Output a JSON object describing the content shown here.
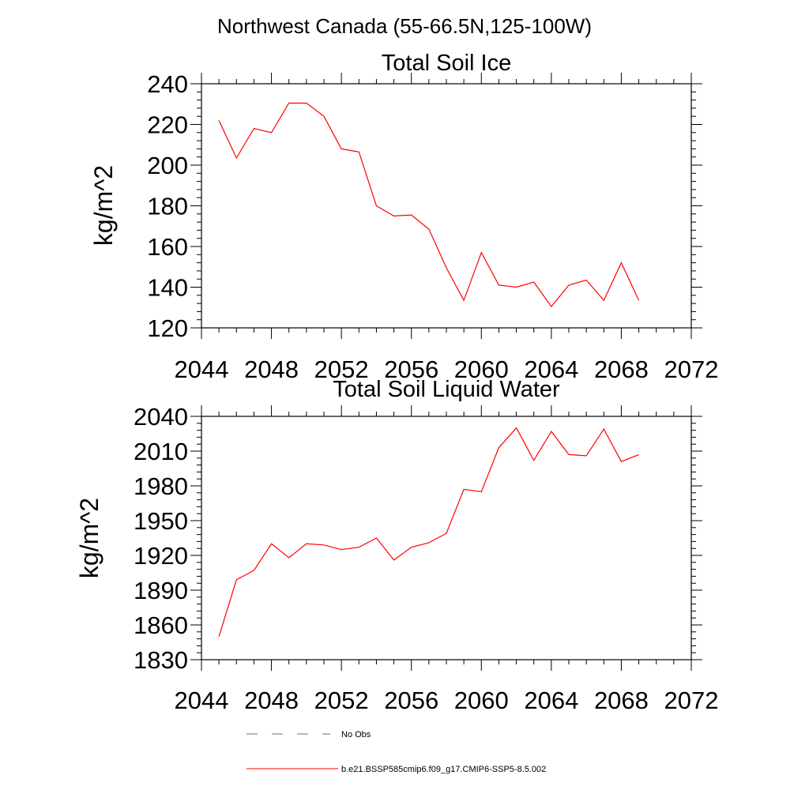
{
  "figure_title": "Northwest Canada (55-66.5N,125-100W)",
  "colors": {
    "model_line": "#ff0000",
    "obs_line": "#6a6a9a",
    "axis": "#000000"
  },
  "legend": {
    "obs_label": "No Obs",
    "model_label": "b.e21.BSSP585cmip6.f09_g17.CMIP6-SSP5-8.5.002"
  },
  "chart_data": [
    {
      "type": "line",
      "title": "Total Soil Ice",
      "xlabel": "",
      "ylabel": "kg/m^2",
      "xlim": [
        2044,
        2072
      ],
      "ylim": [
        120,
        240
      ],
      "xticks": [
        2044,
        2048,
        2052,
        2056,
        2060,
        2064,
        2068,
        2072
      ],
      "yticks": [
        120,
        140,
        160,
        180,
        200,
        220,
        240
      ],
      "grid": false,
      "x": [
        2045,
        2046,
        2047,
        2048,
        2049,
        2050,
        2051,
        2052,
        2053,
        2054,
        2055,
        2056,
        2057,
        2058,
        2059,
        2060,
        2061,
        2062,
        2063,
        2064,
        2065,
        2066,
        2067,
        2068,
        2069
      ],
      "series": [
        {
          "name": "b.e21.BSSP585cmip6.f09_g17.CMIP6-SSP5-8.5.002",
          "values": [
            222,
            203.5,
            218,
            216,
            230.5,
            230.5,
            224,
            208,
            206.5,
            180,
            175,
            175.5,
            168.5,
            149.5,
            133.5,
            157,
            141,
            140,
            142.5,
            130.5,
            141,
            143.5,
            133.5,
            152,
            133.5
          ]
        }
      ]
    },
    {
      "type": "line",
      "title": "Total Soil Liquid Water",
      "xlabel": "",
      "ylabel": "kg/m^2",
      "xlim": [
        2044,
        2072
      ],
      "ylim": [
        1830,
        2040
      ],
      "xticks": [
        2044,
        2048,
        2052,
        2056,
        2060,
        2064,
        2068,
        2072
      ],
      "yticks": [
        1830,
        1860,
        1890,
        1920,
        1950,
        1980,
        2010,
        2040
      ],
      "grid": false,
      "x": [
        2045,
        2046,
        2047,
        2048,
        2049,
        2050,
        2051,
        2052,
        2053,
        2054,
        2055,
        2056,
        2057,
        2058,
        2059,
        2060,
        2061,
        2062,
        2063,
        2064,
        2065,
        2066,
        2067,
        2068,
        2069
      ],
      "series": [
        {
          "name": "b.e21.BSSP585cmip6.f09_g17.CMIP6-SSP5-8.5.002",
          "values": [
            1850,
            1899,
            1907,
            1930,
            1918,
            1930,
            1929,
            1925,
            1927,
            1935,
            1916,
            1927,
            1931,
            1939,
            1977,
            1975,
            2013,
            2030,
            2002,
            2027,
            2007,
            2006,
            2029,
            2001,
            2007
          ]
        }
      ]
    }
  ]
}
